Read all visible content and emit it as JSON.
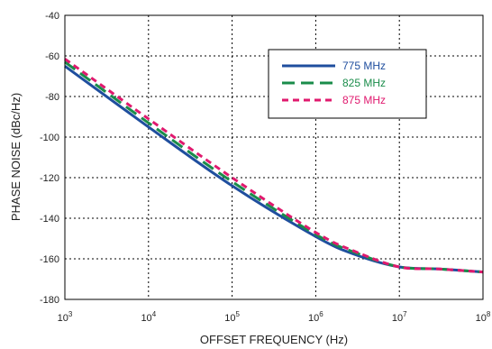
{
  "chart_data": {
    "type": "line",
    "title": "",
    "xlabel": "OFFSET FREQUENCY (Hz)",
    "ylabel": "PHASE NOISE (dBc/Hz)",
    "xscale": "log",
    "xlim": [
      1000,
      100000000
    ],
    "ylim": [
      -180,
      -40
    ],
    "xticks": [
      {
        "value": 1000,
        "base": "10",
        "exp": "3"
      },
      {
        "value": 10000,
        "base": "10",
        "exp": "4"
      },
      {
        "value": 100000,
        "base": "10",
        "exp": "5"
      },
      {
        "value": 1000000,
        "base": "10",
        "exp": "6"
      },
      {
        "value": 10000000,
        "base": "10",
        "exp": "7"
      },
      {
        "value": 100000000,
        "base": "10",
        "exp": "8"
      }
    ],
    "yticks": [
      {
        "value": -40,
        "label": "-40"
      },
      {
        "value": -60,
        "label": "-60"
      },
      {
        "value": -80,
        "label": "-80"
      },
      {
        "value": -100,
        "label": "-100"
      },
      {
        "value": -120,
        "label": "-120"
      },
      {
        "value": -140,
        "label": "-140"
      },
      {
        "value": -160,
        "label": "-160"
      },
      {
        "value": -180,
        "label": "-180"
      }
    ],
    "grid": "dotted",
    "legend_position": "top-right",
    "series": [
      {
        "name": "775 MHz",
        "color": "#1f4e9e",
        "dash": "solid",
        "x": [
          1000,
          10000,
          100000,
          1000000,
          3000000,
          10000000,
          30000000,
          100000000
        ],
        "y": [
          -65,
          -95,
          -124,
          -149,
          -158,
          -164,
          -165,
          -166.5
        ]
      },
      {
        "name": "825 MHz",
        "color": "#1a8c4a",
        "dash": "long-dash",
        "x": [
          1000,
          10000,
          100000,
          1000000,
          3000000,
          10000000,
          30000000,
          100000000
        ],
        "y": [
          -63,
          -93,
          -122,
          -148,
          -157,
          -164,
          -165,
          -166.5
        ]
      },
      {
        "name": "875 MHz",
        "color": "#e0196e",
        "dash": "short-dash",
        "x": [
          1000,
          10000,
          100000,
          1000000,
          3000000,
          10000000,
          30000000,
          100000000
        ],
        "y": [
          -61.5,
          -91,
          -120,
          -147,
          -156.5,
          -164,
          -165,
          -166.5
        ]
      }
    ]
  }
}
